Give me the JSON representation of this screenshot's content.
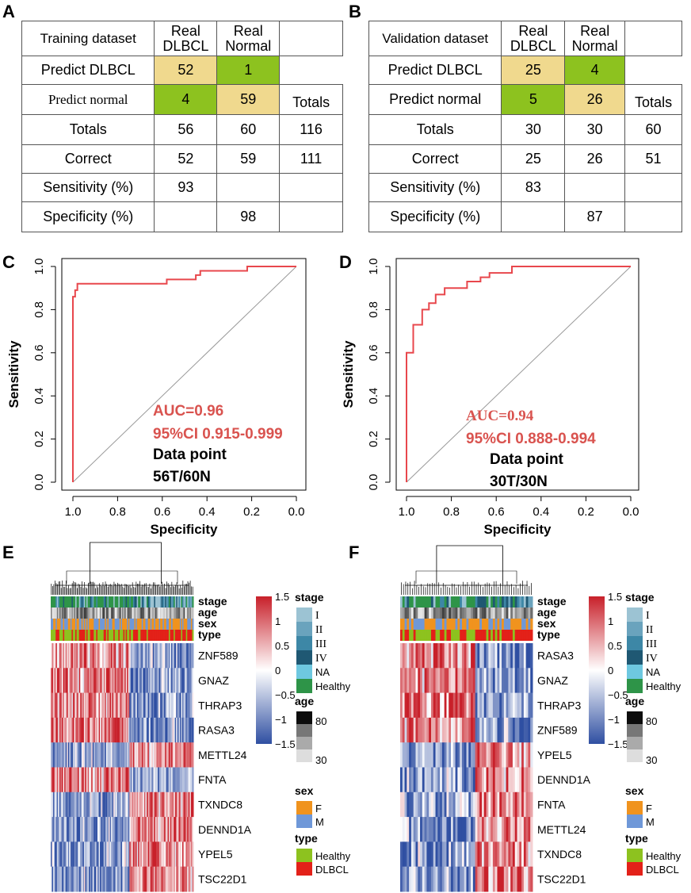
{
  "panels": {
    "A": "A",
    "B": "B",
    "C": "C",
    "D": "D",
    "E": "E",
    "F": "F"
  },
  "tableA": {
    "title": "Training dataset",
    "col1a": "Real",
    "col1b": "DLBCL",
    "col2a": "Real",
    "col2b": "Normal",
    "r_pd": "Predict DLBCL",
    "r_pd_1": "52",
    "r_pd_2": "1",
    "r_pn": "Predict normal",
    "r_pn_1": "4",
    "r_pn_2": "59",
    "r_pn_3": "Totals",
    "r_t": "Totals",
    "r_t_1": "56",
    "r_t_2": "60",
    "r_t_3": "116",
    "r_c": "Correct",
    "r_c_1": "52",
    "r_c_2": "59",
    "r_c_3": "111",
    "r_se": "Sensitivity (%)",
    "r_se_1": "93",
    "r_sp": "Specificity (%)",
    "r_sp_2": "98"
  },
  "tableB": {
    "title": "Validation dataset",
    "col1a": "Real",
    "col1b": "DLBCL",
    "col2a": "Real",
    "col2b": "Normal",
    "r_pd": "Predict DLBCL",
    "r_pd_1": "25",
    "r_pd_2": "4",
    "r_pn": "Predict normal",
    "r_pn_1": "5",
    "r_pn_2": "26",
    "r_pn_3": "Totals",
    "r_t": "Totals",
    "r_t_1": "30",
    "r_t_2": "30",
    "r_t_3": "60",
    "r_c": "Correct",
    "r_c_1": "25",
    "r_c_2": "26",
    "r_c_3": "51",
    "r_se": "Sensitivity (%)",
    "r_se_1": "83",
    "r_sp": "Specificity (%)",
    "r_sp_2": "87"
  },
  "colors": {
    "yellow": "#f0d98e",
    "green": "#8dc21f",
    "roc": "#e8474c",
    "diag": "#999999",
    "heat_hi": "#c8202a",
    "heat_lo": "#2f4fa2"
  },
  "chart_data": [
    {
      "type": "line",
      "title": "",
      "xlabel": "Specificity",
      "ylabel": "Sensitivity",
      "xlim": [
        1.0,
        0.0
      ],
      "ylim": [
        0.0,
        1.0
      ],
      "xticks": [
        "1.0",
        "0.8",
        "0.6",
        "0.4",
        "0.2",
        "0.0"
      ],
      "yticks": [
        "0.0",
        "0.2",
        "0.4",
        "0.6",
        "0.8",
        "1.0"
      ],
      "series": [
        {
          "name": "ROC",
          "x": [
            1.0,
            1.0,
            0.99,
            0.99,
            0.98,
            0.98,
            0.58,
            0.58,
            0.45,
            0.45,
            0.43,
            0.43,
            0.22,
            0.22,
            0.0
          ],
          "y": [
            0.0,
            0.86,
            0.86,
            0.89,
            0.89,
            0.92,
            0.92,
            0.94,
            0.94,
            0.96,
            0.96,
            0.98,
            0.98,
            1.0,
            1.0
          ]
        }
      ],
      "auc": "AUC=0.96",
      "ci": "95%CI 0.915-0.999",
      "dp_label": "Data point",
      "dp_value": "56T/60N"
    },
    {
      "type": "line",
      "title": "",
      "xlabel": "Specificity",
      "ylabel": "Sensitivity",
      "xlim": [
        1.0,
        0.0
      ],
      "ylim": [
        0.0,
        1.0
      ],
      "xticks": [
        "1.0",
        "0.8",
        "0.6",
        "0.4",
        "0.2",
        "0.0"
      ],
      "yticks": [
        "0.0",
        "0.2",
        "0.4",
        "0.6",
        "0.8",
        "1.0"
      ],
      "series": [
        {
          "name": "ROC",
          "x": [
            1.0,
            1.0,
            0.97,
            0.97,
            0.93,
            0.93,
            0.9,
            0.9,
            0.87,
            0.87,
            0.83,
            0.83,
            0.73,
            0.73,
            0.67,
            0.67,
            0.63,
            0.63,
            0.53,
            0.53,
            0.0
          ],
          "y": [
            0.0,
            0.6,
            0.6,
            0.73,
            0.73,
            0.8,
            0.8,
            0.83,
            0.83,
            0.87,
            0.87,
            0.9,
            0.9,
            0.93,
            0.93,
            0.95,
            0.95,
            0.97,
            0.97,
            1.0,
            1.0
          ]
        }
      ],
      "auc": "AUC=0.94",
      "ci": "95%CI 0.888-0.994",
      "dp_label": "Data point",
      "dp_value": "30T/30N"
    }
  ],
  "heatE": {
    "genes": [
      "ZNF589",
      "GNAZ",
      "THRAP3",
      "RASA3",
      "METTL24",
      "FNTA",
      "TXNDC8",
      "DENND1A",
      "YPEL5",
      "TSC22D1"
    ],
    "annotations": [
      "stage",
      "age",
      "sex",
      "type"
    ]
  },
  "heatF": {
    "genes": [
      "RASA3",
      "GNAZ",
      "THRAP3",
      "ZNF589",
      "YPEL5",
      "DENND1A",
      "FNTA",
      "METTL24",
      "TXNDC8",
      "TSC22D1"
    ],
    "annotations": [
      "stage",
      "age",
      "sex",
      "type"
    ]
  },
  "legend": {
    "scale": [
      "1.5",
      "1",
      "0.5",
      "0",
      "−0.5",
      "−1",
      "−1.5"
    ],
    "stage_title": "stage",
    "stages": [
      "I",
      "II",
      "III",
      "IV",
      "NA",
      "Healthy"
    ],
    "stage_colors": [
      "#9cc3d3",
      "#6aa3bd",
      "#3d87a6",
      "#1f5873",
      "#6ec8e0",
      "#2e9448"
    ],
    "age_title": "age",
    "age_hi": "80",
    "age_lo": "30",
    "sex_title": "sex",
    "sex_f": "F",
    "sex_m": "M",
    "sex_colors": [
      "#f0931e",
      "#6f98d8"
    ],
    "type_title": "type",
    "type_h": "Healthy",
    "type_d": "DLBCL",
    "type_colors": [
      "#8dc21f",
      "#e32119"
    ]
  }
}
